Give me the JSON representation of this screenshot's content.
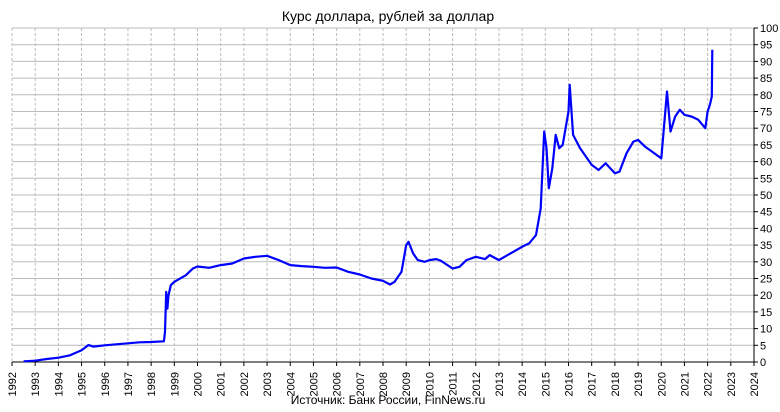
{
  "chart_data": {
    "type": "line",
    "title": "Курс доллара, рублей за доллар",
    "source_note": "Источник: Банк России, FinNews.ru",
    "xlabel": "",
    "ylabel": "",
    "xlim": [
      1992,
      2024
    ],
    "ylim": [
      0,
      100
    ],
    "x_ticks": [
      "1992",
      "1993",
      "1994",
      "1995",
      "1996",
      "1997",
      "1998",
      "1999",
      "2000",
      "2001",
      "2002",
      "2003",
      "2004",
      "2005",
      "2006",
      "2007",
      "2008",
      "2009",
      "2010",
      "2011",
      "2012",
      "2013",
      "2014",
      "2015",
      "2016",
      "2017",
      "2018",
      "2019",
      "2020",
      "2021",
      "2022",
      "2023",
      "2024"
    ],
    "y_ticks": [
      "0",
      "5",
      "10",
      "15",
      "20",
      "25",
      "30",
      "35",
      "40",
      "45",
      "50",
      "55",
      "60",
      "65",
      "70",
      "75",
      "80",
      "85",
      "90",
      "95",
      "100"
    ],
    "grid": true,
    "legend": "none",
    "series": [
      {
        "color": "#0000ff",
        "x": [
          1992.5,
          1993.0,
          1993.5,
          1994.0,
          1994.5,
          1995.0,
          1995.3,
          1995.5,
          1996.0,
          1996.5,
          1997.0,
          1997.5,
          1998.0,
          1998.55,
          1998.6,
          1998.65,
          1998.7,
          1998.75,
          1998.85,
          1999.0,
          1999.5,
          1999.8,
          2000.0,
          2000.5,
          2001.0,
          2001.5,
          2002.0,
          2002.5,
          2003.0,
          2003.5,
          2004.0,
          2004.5,
          2005.0,
          2005.5,
          2006.0,
          2006.5,
          2007.0,
          2007.5,
          2008.0,
          2008.3,
          2008.5,
          2008.8,
          2009.0,
          2009.1,
          2009.3,
          2009.5,
          2009.8,
          2010.0,
          2010.3,
          2010.5,
          2011.0,
          2011.3,
          2011.6,
          2012.0,
          2012.4,
          2012.6,
          2013.0,
          2013.5,
          2014.0,
          2014.3,
          2014.6,
          2014.8,
          2014.95,
          2015.05,
          2015.15,
          2015.3,
          2015.45,
          2015.6,
          2015.75,
          2016.0,
          2016.05,
          2016.2,
          2016.5,
          2017.0,
          2017.3,
          2017.6,
          2018.0,
          2018.2,
          2018.5,
          2018.8,
          2019.0,
          2019.3,
          2019.6,
          2020.0,
          2020.25,
          2020.4,
          2020.6,
          2020.8,
          2021.0,
          2021.3,
          2021.6,
          2021.9,
          2022.0,
          2022.1,
          2022.18,
          2022.2
        ],
        "y": [
          0.2,
          0.4,
          0.9,
          1.3,
          2.0,
          3.5,
          5.1,
          4.6,
          5.0,
          5.3,
          5.6,
          5.9,
          6.0,
          6.2,
          9.0,
          21.0,
          16.0,
          20.0,
          23.0,
          24.0,
          26.0,
          28.0,
          28.6,
          28.2,
          29.0,
          29.5,
          31.0,
          31.5,
          31.8,
          30.5,
          29.0,
          28.7,
          28.5,
          28.2,
          28.3,
          27.0,
          26.2,
          25.0,
          24.3,
          23.2,
          24.0,
          27.0,
          35.0,
          36.0,
          32.5,
          30.5,
          30.0,
          30.5,
          30.8,
          30.3,
          28.0,
          28.5,
          30.5,
          31.5,
          30.8,
          32.0,
          30.5,
          32.5,
          34.5,
          35.5,
          38.0,
          46.0,
          69.0,
          64.0,
          52.0,
          58.0,
          68.0,
          64.0,
          65.0,
          75.0,
          83.0,
          68.0,
          64.0,
          59.0,
          57.5,
          59.5,
          56.5,
          57.0,
          62.5,
          66.0,
          66.5,
          64.5,
          63.0,
          61.0,
          81.0,
          69.0,
          73.5,
          75.5,
          74.0,
          73.5,
          72.5,
          70.0,
          75.0,
          77.0,
          79.5,
          93.5
        ]
      }
    ]
  }
}
